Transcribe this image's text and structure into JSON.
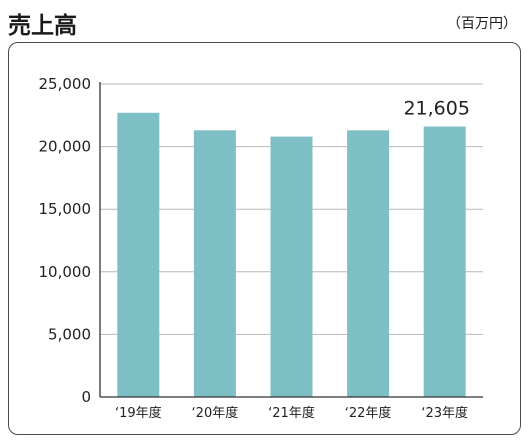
{
  "title": "売上高",
  "unit_label": "（百万円）",
  "chart_data": {
    "type": "bar",
    "title": "売上高",
    "unit": "（百万円）",
    "categories": [
      "‘19年度",
      "‘20年度",
      "‘21年度",
      "‘22年度",
      "‘23年度"
    ],
    "values": [
      22700,
      21300,
      20800,
      21300,
      21605
    ],
    "value_labels": [
      "",
      "",
      "",
      "",
      "21,605"
    ],
    "ylim": [
      0,
      25000
    ],
    "yticks": [
      0,
      5000,
      10000,
      15000,
      20000,
      25000
    ],
    "ytick_labels": [
      "0",
      "5,000",
      "10,000",
      "15,000",
      "20,000",
      "25,000"
    ],
    "grid": true,
    "bar_color": "#7ebfc6",
    "grid_color": "#b8b8b8",
    "axis_color": "#333333"
  }
}
